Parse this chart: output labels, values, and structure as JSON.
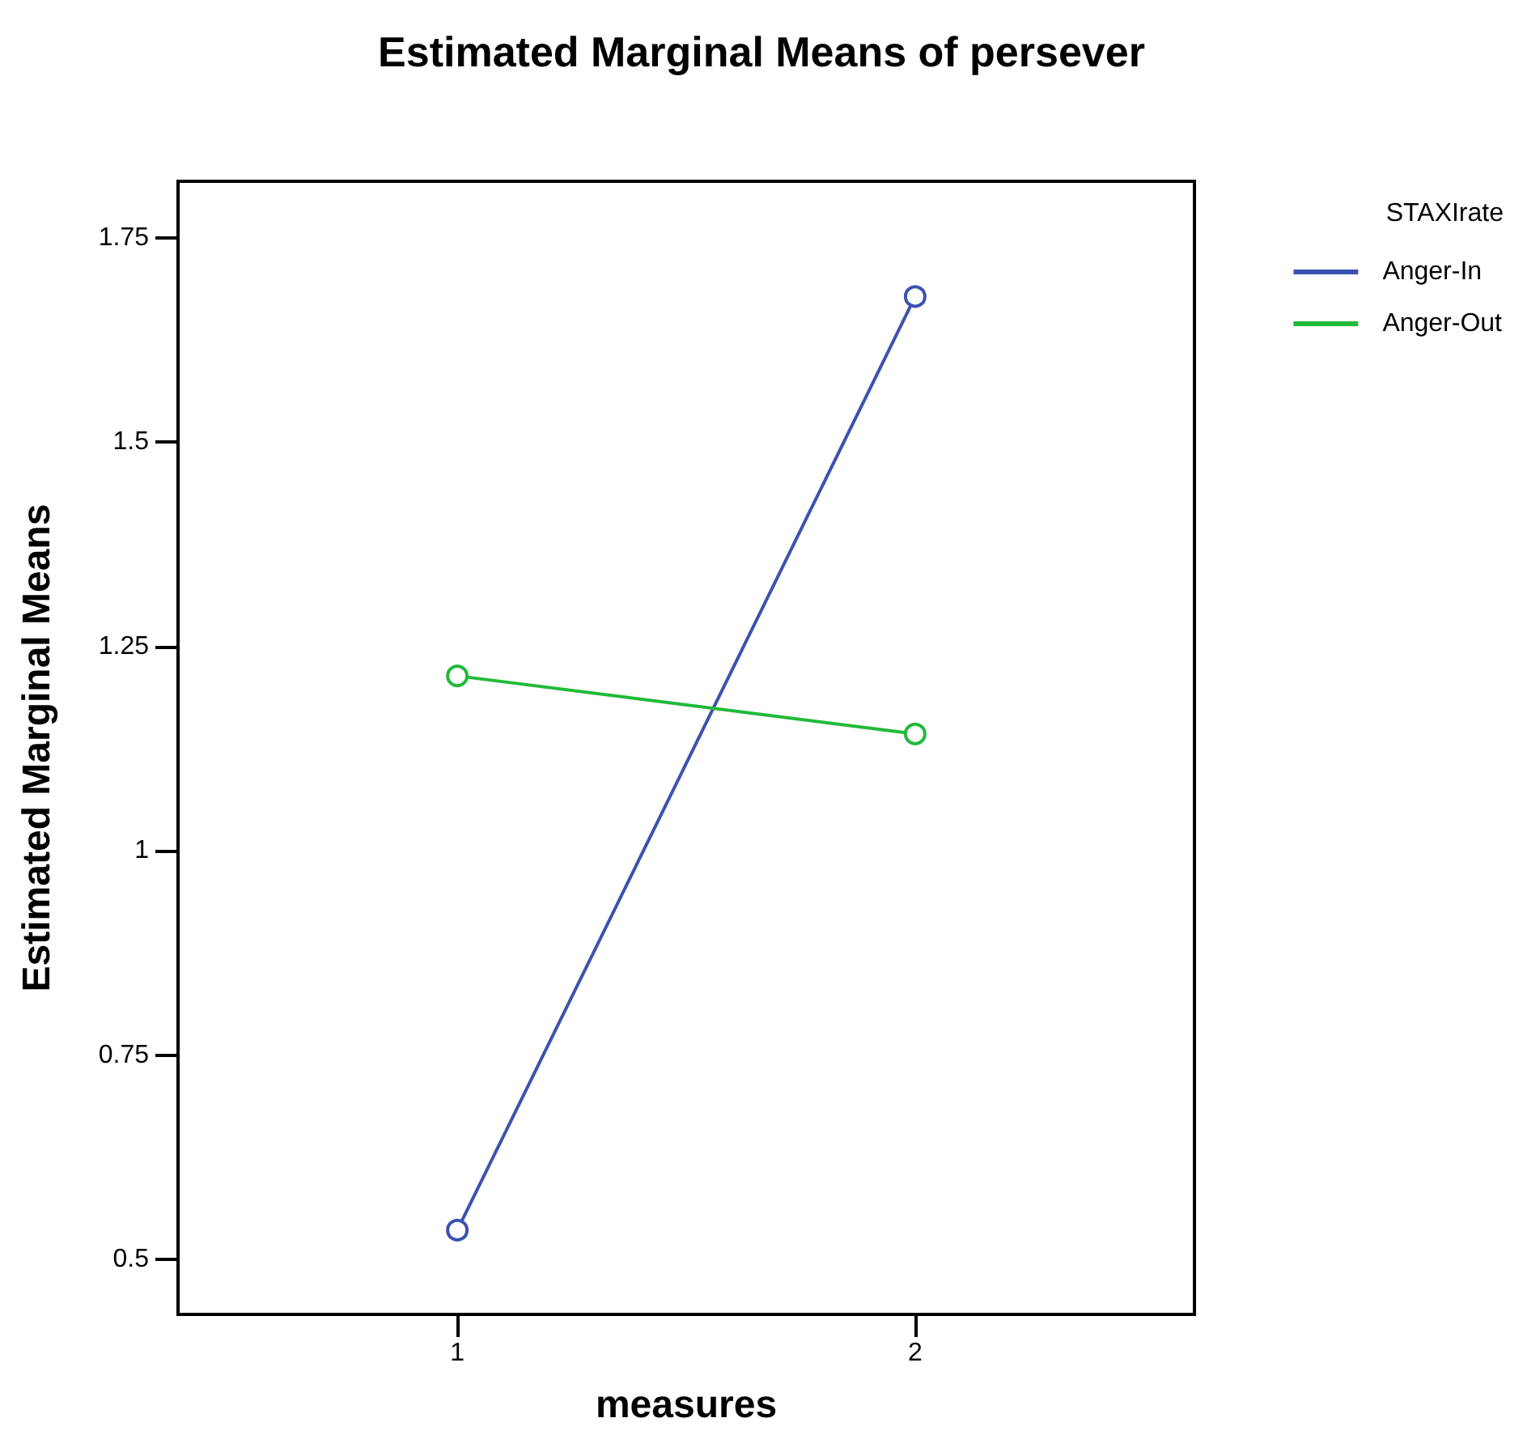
{
  "chart_data": {
    "type": "line",
    "title": "Estimated Marginal Means of persever",
    "xlabel": "measures",
    "ylabel": "Estimated Marginal Means",
    "legend_title": "STAXIrate",
    "x": [
      1,
      2
    ],
    "xlim": [
      0.39,
      2.61
    ],
    "xticks": [
      1,
      2
    ],
    "ylim": [
      0.433,
      1.819
    ],
    "yticks": [
      0.5,
      0.75,
      1,
      1.25,
      1.5,
      1.75
    ],
    "series": [
      {
        "name": "Anger-In",
        "color": "#3c52b0",
        "values": [
          0.536,
          1.678
        ]
      },
      {
        "name": "Anger-Out",
        "color": "#22b93a",
        "values": [
          1.214,
          1.143
        ]
      }
    ],
    "marker": "circle",
    "line_style": "solid",
    "grid": false,
    "legend": "right"
  }
}
